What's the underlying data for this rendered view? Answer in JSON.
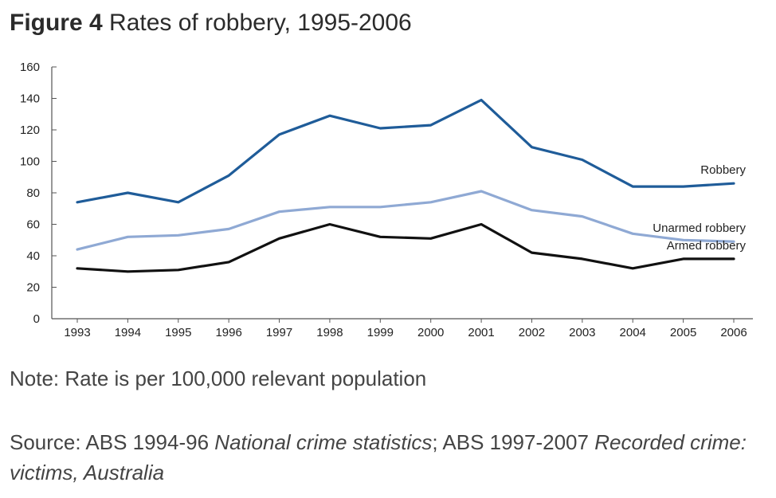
{
  "figure": {
    "label": "Figure 4",
    "title": "Rates of robbery, 1995-2006"
  },
  "note": "Note: Rate is per 100,000 relevant population",
  "source": {
    "parts": [
      {
        "text": "Source: ABS 1994-96 ",
        "italic": false
      },
      {
        "text": "National crime statistics",
        "italic": true
      },
      {
        "text": "; ABS 1997-2007 ",
        "italic": false
      },
      {
        "text": "Recorded crime: victims, Australia",
        "italic": true
      }
    ]
  },
  "chart_data": {
    "type": "line",
    "title": "Rates of robbery, 1995-2006",
    "x": [
      1993,
      1994,
      1995,
      1996,
      1997,
      1998,
      1999,
      2000,
      2001,
      2002,
      2003,
      2004,
      2005,
      2006
    ],
    "xticks": [
      "1993",
      "1994",
      "1995",
      "1996",
      "1997",
      "1998",
      "1999",
      "2000",
      "2001",
      "2002",
      "2003",
      "2004",
      "2005",
      "2006"
    ],
    "ylim": [
      0,
      160
    ],
    "yticks": [
      0,
      20,
      40,
      60,
      80,
      100,
      120,
      140,
      160
    ],
    "grid": false,
    "legend": "inline-right",
    "series": [
      {
        "name": "Robbery",
        "color": "#1f5c99",
        "values": [
          74,
          80,
          74,
          91,
          117,
          129,
          121,
          123,
          139,
          109,
          101,
          84,
          84,
          86
        ]
      },
      {
        "name": "Unarmed robbery",
        "color": "#8fa9d4",
        "values": [
          44,
          52,
          53,
          57,
          68,
          71,
          71,
          74,
          81,
          69,
          65,
          54,
          50,
          49
        ]
      },
      {
        "name": "Armed robbery",
        "color": "#111111",
        "values": [
          32,
          30,
          31,
          36,
          51,
          60,
          52,
          51,
          60,
          42,
          38,
          32,
          38,
          38
        ]
      }
    ]
  }
}
